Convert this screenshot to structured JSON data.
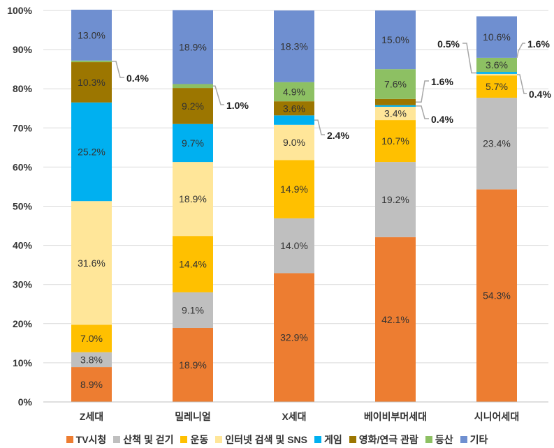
{
  "chart_data": {
    "type": "bar",
    "stacked": true,
    "ylim": [
      0,
      100
    ],
    "yticks": [
      "0%",
      "10%",
      "20%",
      "30%",
      "40%",
      "50%",
      "60%",
      "70%",
      "80%",
      "90%",
      "100%"
    ],
    "categories": [
      "Z세대",
      "밀레니얼",
      "X세대",
      "베이비부머세대",
      "시니어세대"
    ],
    "series": [
      {
        "name": "TV시청",
        "color": "#ED7D31",
        "values": [
          8.9,
          18.9,
          32.9,
          42.1,
          54.3
        ],
        "labels": [
          "8.9%",
          "18.9%",
          "32.9%",
          "42.1%",
          "54.3%"
        ]
      },
      {
        "name": "산책 및 걷기",
        "color": "#BFBFBF",
        "values": [
          3.8,
          9.1,
          14.0,
          19.2,
          23.4
        ],
        "labels": [
          "3.8%",
          "9.1%",
          "14.0%",
          "19.2%",
          "23.4%"
        ]
      },
      {
        "name": "운동",
        "color": "#FFC000",
        "values": [
          7.0,
          14.4,
          14.9,
          10.7,
          5.7
        ],
        "labels": [
          "7.0%",
          "14.4%",
          "14.9%",
          "10.7%",
          "5.7%"
        ]
      },
      {
        "name": "인터넷 검색 및 SNS",
        "color": "#FFE699",
        "values": [
          31.6,
          18.9,
          9.0,
          3.4,
          0.4
        ],
        "labels": [
          "31.6%",
          "18.9%",
          "9.0%",
          "3.4%",
          "0.4%"
        ]
      },
      {
        "name": "게임",
        "color": "#00B0F0",
        "values": [
          25.2,
          9.7,
          2.4,
          0.4,
          0.5
        ],
        "labels": [
          "25.2%",
          "9.7%",
          "2.4%",
          "0.4%",
          "0.5%"
        ]
      },
      {
        "name": "영화/연극 관람",
        "color": "#9C7600",
        "values": [
          10.3,
          9.2,
          3.6,
          1.6,
          0.0
        ],
        "labels": [
          "10.3%",
          "9.2%",
          "3.6%",
          "1.6%",
          ""
        ]
      },
      {
        "name": "등산",
        "color": "#8DC063",
        "values": [
          0.4,
          1.0,
          4.9,
          7.6,
          3.6
        ],
        "labels": [
          "0.4%",
          "1.0%",
          "4.9%",
          "7.6%",
          "3.6%"
        ]
      },
      {
        "name": "기타",
        "color": "#6F8FD0",
        "values": [
          13.0,
          18.9,
          18.3,
          15.0,
          10.6
        ],
        "labels": [
          "13.0%",
          "18.9%",
          "18.3%",
          "15.0%",
          "10.6%"
        ]
      }
    ],
    "extra_labels": [
      "1.6%"
    ],
    "legend_position": "bottom"
  }
}
